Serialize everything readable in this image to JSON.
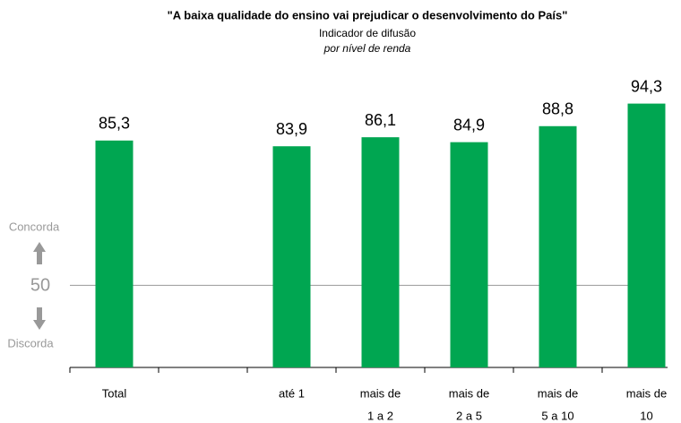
{
  "chart_data": {
    "type": "bar",
    "title": "\"A baixa qualidade do ensino vai prejudicar o desenvolvimento do País\"",
    "subtitle": "Indicador de difusão",
    "subtitle2": "por nível de renda",
    "categories": [
      [
        "Total"
      ],
      null,
      [
        "até 1"
      ],
      [
        "mais de",
        "1 a 2"
      ],
      [
        "mais de",
        "2 a 5"
      ],
      [
        "mais de",
        "5 a 10"
      ],
      [
        "mais de",
        "10"
      ]
    ],
    "values": [
      85.3,
      null,
      83.9,
      86.1,
      84.9,
      88.8,
      94.3
    ],
    "value_labels": [
      "85,3",
      null,
      "83,9",
      "86,1",
      "84,9",
      "88,8",
      "94,3"
    ],
    "color": "#00a651",
    "ylim": [
      30,
      100
    ],
    "yticks": [
      50
    ],
    "grid": true,
    "annotations": [
      "Concorda",
      "Discorda"
    ]
  }
}
